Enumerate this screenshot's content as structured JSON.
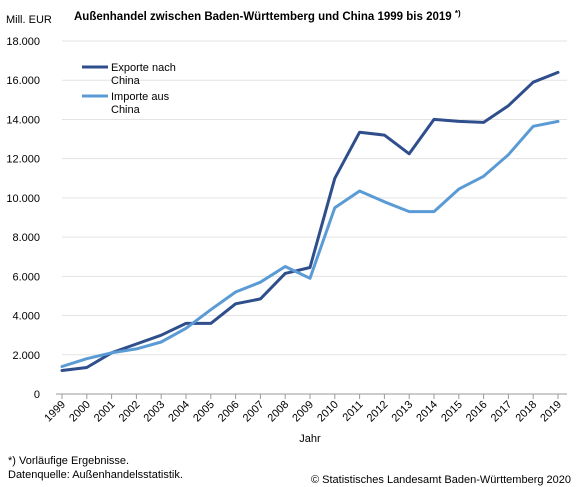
{
  "chart_data": {
    "type": "line",
    "title": "Außenhandel zwischen Baden-Württemberg und China 1999 bis 2019",
    "title_suffix": "*)",
    "ylabel": "Mill. EUR",
    "xlabel": "Jahr",
    "ylim": [
      0,
      18000
    ],
    "yticks": [
      0,
      2000,
      4000,
      6000,
      8000,
      10000,
      12000,
      14000,
      16000,
      18000
    ],
    "ytick_labels": [
      "0",
      "2.000",
      "4.000",
      "6.000",
      "8.000",
      "10.000",
      "12.000",
      "14.000",
      "16.000",
      "18.000"
    ],
    "grid": "horizontal",
    "legend_position": "top-left",
    "categories": [
      "1999",
      "2000",
      "2001",
      "2002",
      "2003",
      "2004",
      "2005",
      "2006",
      "2007",
      "2008",
      "2009",
      "2010",
      "2011",
      "2012",
      "2013",
      "2014",
      "2015",
      "2016",
      "2017",
      "2018",
      "2019"
    ],
    "series": [
      {
        "name_lines": [
          "Exporte nach",
          "China"
        ],
        "color": "#2f4e8c",
        "values": [
          1200,
          1350,
          2100,
          2550,
          3000,
          3600,
          3600,
          4600,
          4850,
          6150,
          6450,
          11000,
          13350,
          13200,
          12250,
          14000,
          13900,
          13850,
          14700,
          15900,
          16400
        ]
      },
      {
        "name_lines": [
          "Importe aus",
          "China"
        ],
        "color": "#5b9bd5",
        "values": [
          1400,
          1800,
          2100,
          2300,
          2650,
          3350,
          4300,
          5200,
          5700,
          6500,
          5900,
          9500,
          10350,
          9800,
          9300,
          9300,
          10450,
          11100,
          12200,
          13650,
          13900
        ]
      }
    ]
  },
  "footnote": {
    "line1": "*) Vorläufige Ergebnisse.",
    "line2": "Datenquelle: Außenhandelsstatistik."
  },
  "copyright": "© Statistisches Landesamt Baden-Württemberg 2020"
}
